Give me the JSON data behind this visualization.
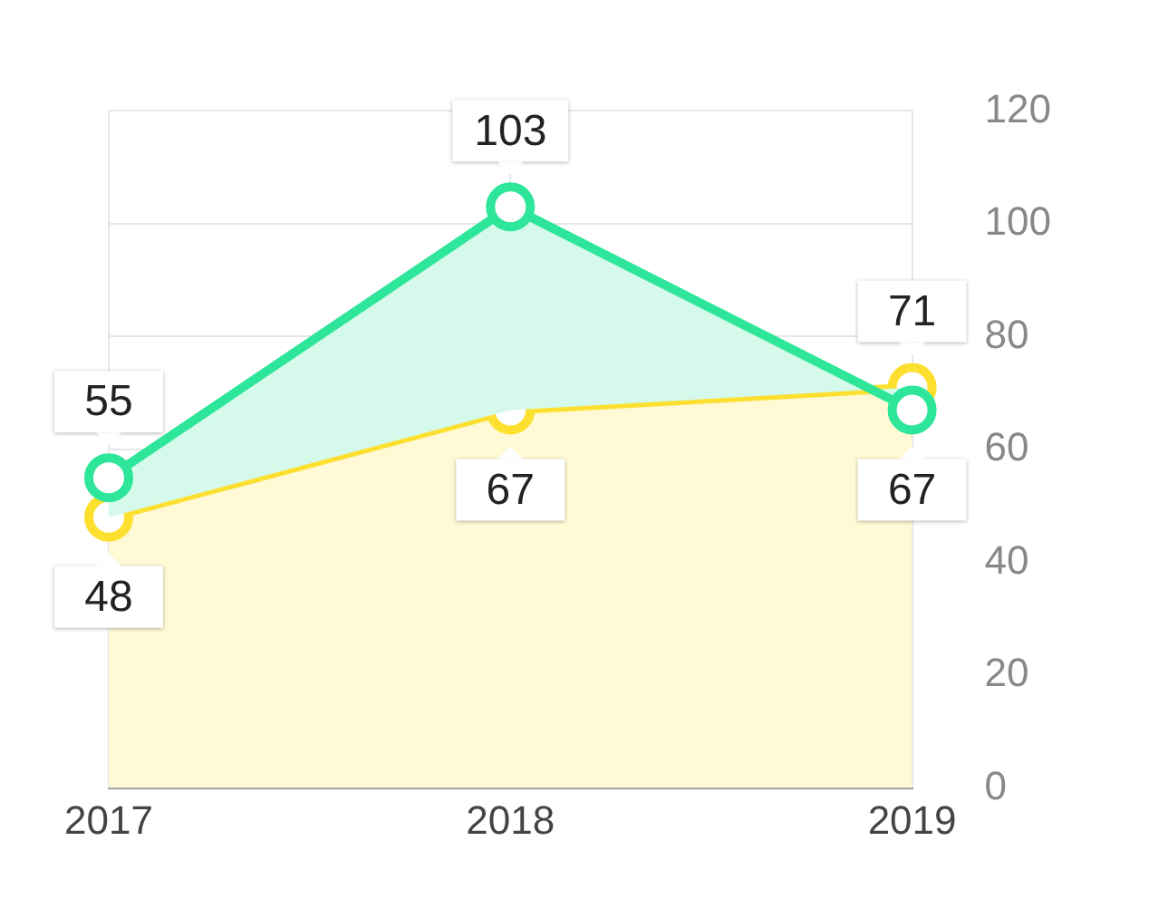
{
  "chart_data": {
    "type": "area",
    "categories": [
      "2017",
      "2018",
      "2019"
    ],
    "series": [
      {
        "color": "#2de69a",
        "values": [
          55,
          103,
          67
        ]
      },
      {
        "color": "#fde02f",
        "values": [
          48,
          67,
          71
        ]
      }
    ],
    "ylim": [
      0,
      120
    ],
    "yticks": [
      0,
      20,
      40,
      60,
      80,
      100,
      120
    ],
    "grid": true,
    "legend": false,
    "marker": "circle",
    "data_labels": true
  }
}
